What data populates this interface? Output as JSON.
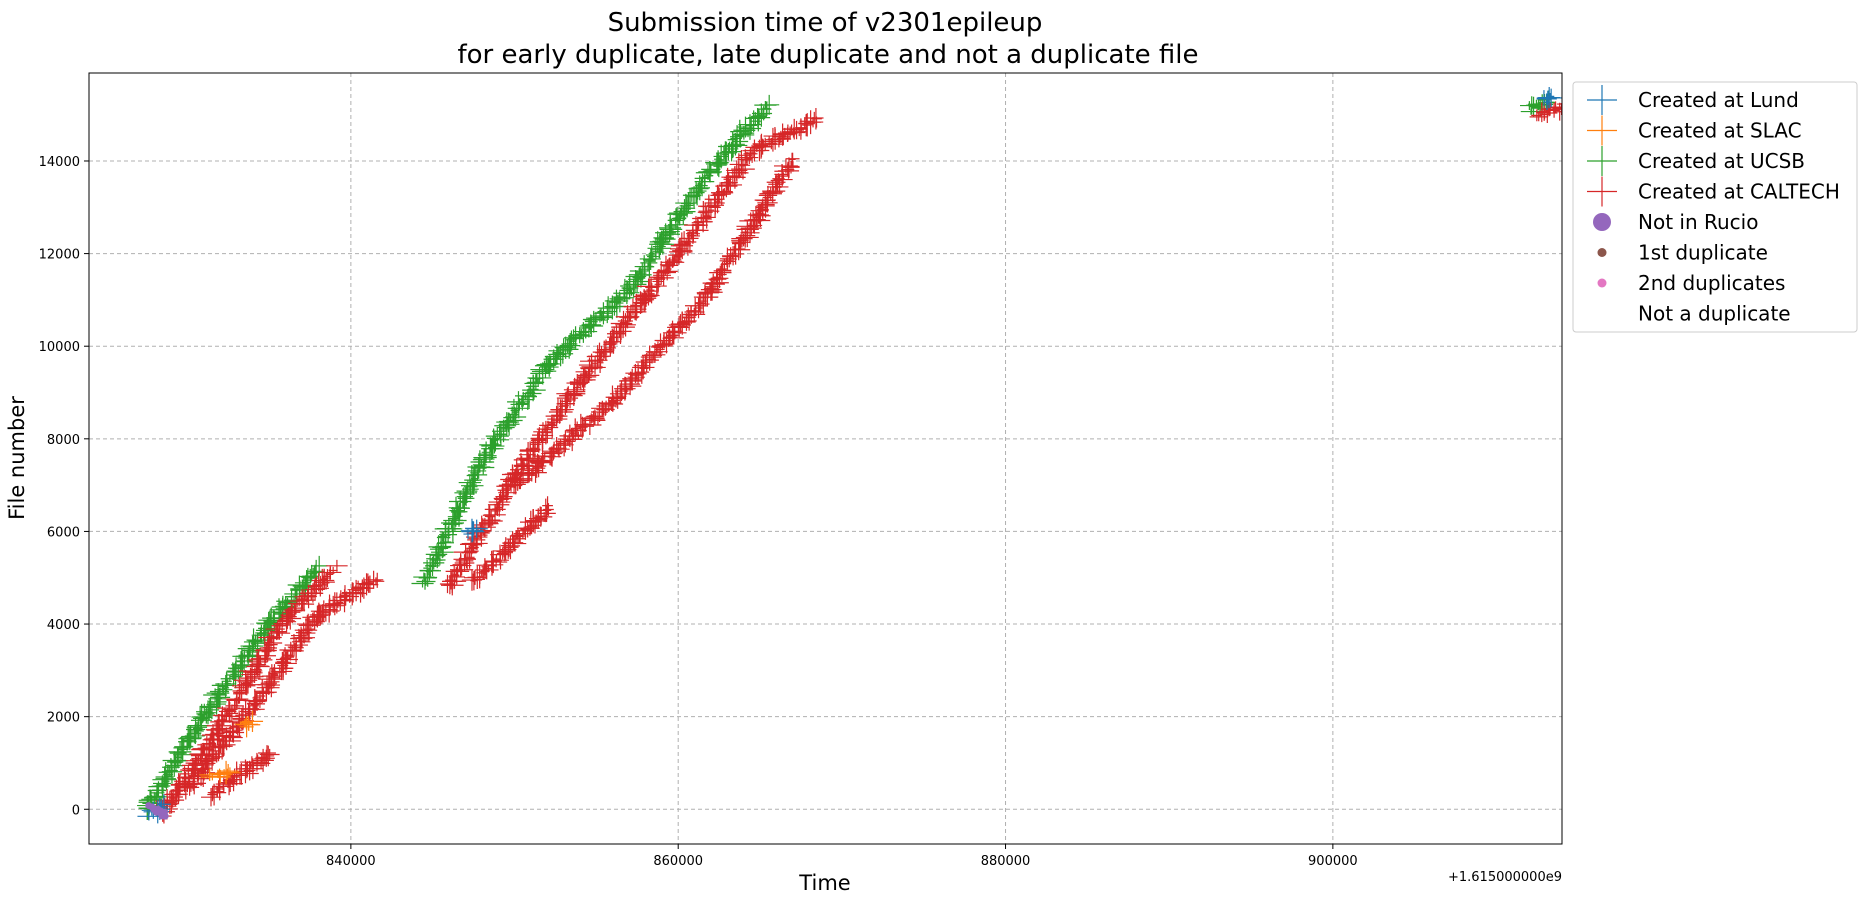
{
  "chart_data": {
    "type": "scatter",
    "title_lines": [
      "Submission time of v2301epileup",
      "for early duplicate, late duplicate and not a duplicate file"
    ],
    "xlabel": "Time",
    "ylabel": "File number",
    "x_offset_label": "+1.615000000e9",
    "xlim": [
      824000,
      914000
    ],
    "ylim": [
      -750,
      15900
    ],
    "x_ticks": [
      840000,
      860000,
      880000,
      900000
    ],
    "x_tick_labels": [
      "840000",
      "860000",
      "880000",
      "900000"
    ],
    "y_ticks": [
      0,
      2000,
      4000,
      6000,
      8000,
      10000,
      12000,
      14000
    ],
    "y_tick_labels": [
      "0",
      "2000",
      "4000",
      "6000",
      "8000",
      "10000",
      "12000",
      "14000"
    ],
    "grid": true,
    "legend_position": "outside-upper-right",
    "legend": [
      {
        "label": "Created at Lund",
        "marker": "plus",
        "color": "#1f77b4"
      },
      {
        "label": "Created at SLAC",
        "marker": "plus",
        "color": "#ff7f0e"
      },
      {
        "label": "Created at UCSB",
        "marker": "plus",
        "color": "#2ca02c"
      },
      {
        "label": "Created at CALTECH",
        "marker": "plus",
        "color": "#d62728"
      },
      {
        "label": "Not in Rucio",
        "marker": "circle-large",
        "color": "#9467bd"
      },
      {
        "label": "1st duplicate",
        "marker": "circle-small",
        "color": "#8c564b"
      },
      {
        "label": "2nd duplicates",
        "marker": "circle-small",
        "color": "#e377c2"
      },
      {
        "label": "Not a duplicate",
        "marker": "none",
        "color": "#ffffff"
      }
    ],
    "series": [
      {
        "name": "Created at UCSB",
        "color": "#2ca02c",
        "segments": [
          [
            [
              827500,
              0
            ],
            [
              831000,
              2000
            ],
            [
              835000,
              4000
            ],
            [
              838000,
              5200
            ]
          ],
          [
            [
              844500,
              4900
            ],
            [
              848000,
              7500
            ],
            [
              852000,
              9600
            ],
            [
              857000,
              11200
            ],
            [
              862000,
              13800
            ],
            [
              865500,
              15200
            ]
          ],
          [
            [
              912000,
              15100
            ],
            [
              913000,
              15300
            ]
          ]
        ]
      },
      {
        "name": "Created at CALTECH",
        "color": "#d62728",
        "segments": [
          [
            [
              828500,
              -100
            ],
            [
              832000,
              1800
            ],
            [
              836000,
              4100
            ],
            [
              839000,
              5200
            ]
          ],
          [
            [
              830000,
              400
            ],
            [
              834000,
              2200
            ],
            [
              838000,
              4200
            ],
            [
              841500,
              4950
            ]
          ],
          [
            [
              831500,
              300
            ],
            [
              835000,
              1200
            ]
          ],
          [
            [
              846000,
              4800
            ],
            [
              850000,
              7200
            ],
            [
              854000,
              9200
            ],
            [
              860000,
              12000
            ],
            [
              864500,
              14200
            ],
            [
              868500,
              14900
            ]
          ],
          [
            [
              847500,
              4900
            ],
            [
              852000,
              6500
            ]
          ],
          [
            [
              850000,
              7000
            ],
            [
              856000,
              8800
            ],
            [
              862000,
              11200
            ],
            [
              867000,
              14000
            ]
          ],
          [
            [
              912500,
              15000
            ],
            [
              914500,
              15200
            ]
          ]
        ]
      },
      {
        "name": "Created at Lund",
        "color": "#1f77b4",
        "segments": [
          [
            [
              827800,
              -100
            ],
            [
              828600,
              50
            ]
          ],
          [
            [
              847300,
              5950
            ],
            [
              847700,
              6050
            ]
          ],
          [
            [
              912900,
              15300
            ],
            [
              913400,
              15400
            ]
          ]
        ]
      },
      {
        "name": "Created at SLAC",
        "color": "#ff7f0e",
        "segments": [
          [
            [
              831500,
              750
            ],
            [
              832500,
              800
            ]
          ],
          [
            [
              833500,
              1800
            ],
            [
              834000,
              1900
            ]
          ]
        ]
      },
      {
        "name": "Not in Rucio",
        "color": "#9467bd",
        "segments": [
          [
            [
              827700,
              50
            ],
            [
              828800,
              -150
            ]
          ]
        ]
      }
    ]
  }
}
